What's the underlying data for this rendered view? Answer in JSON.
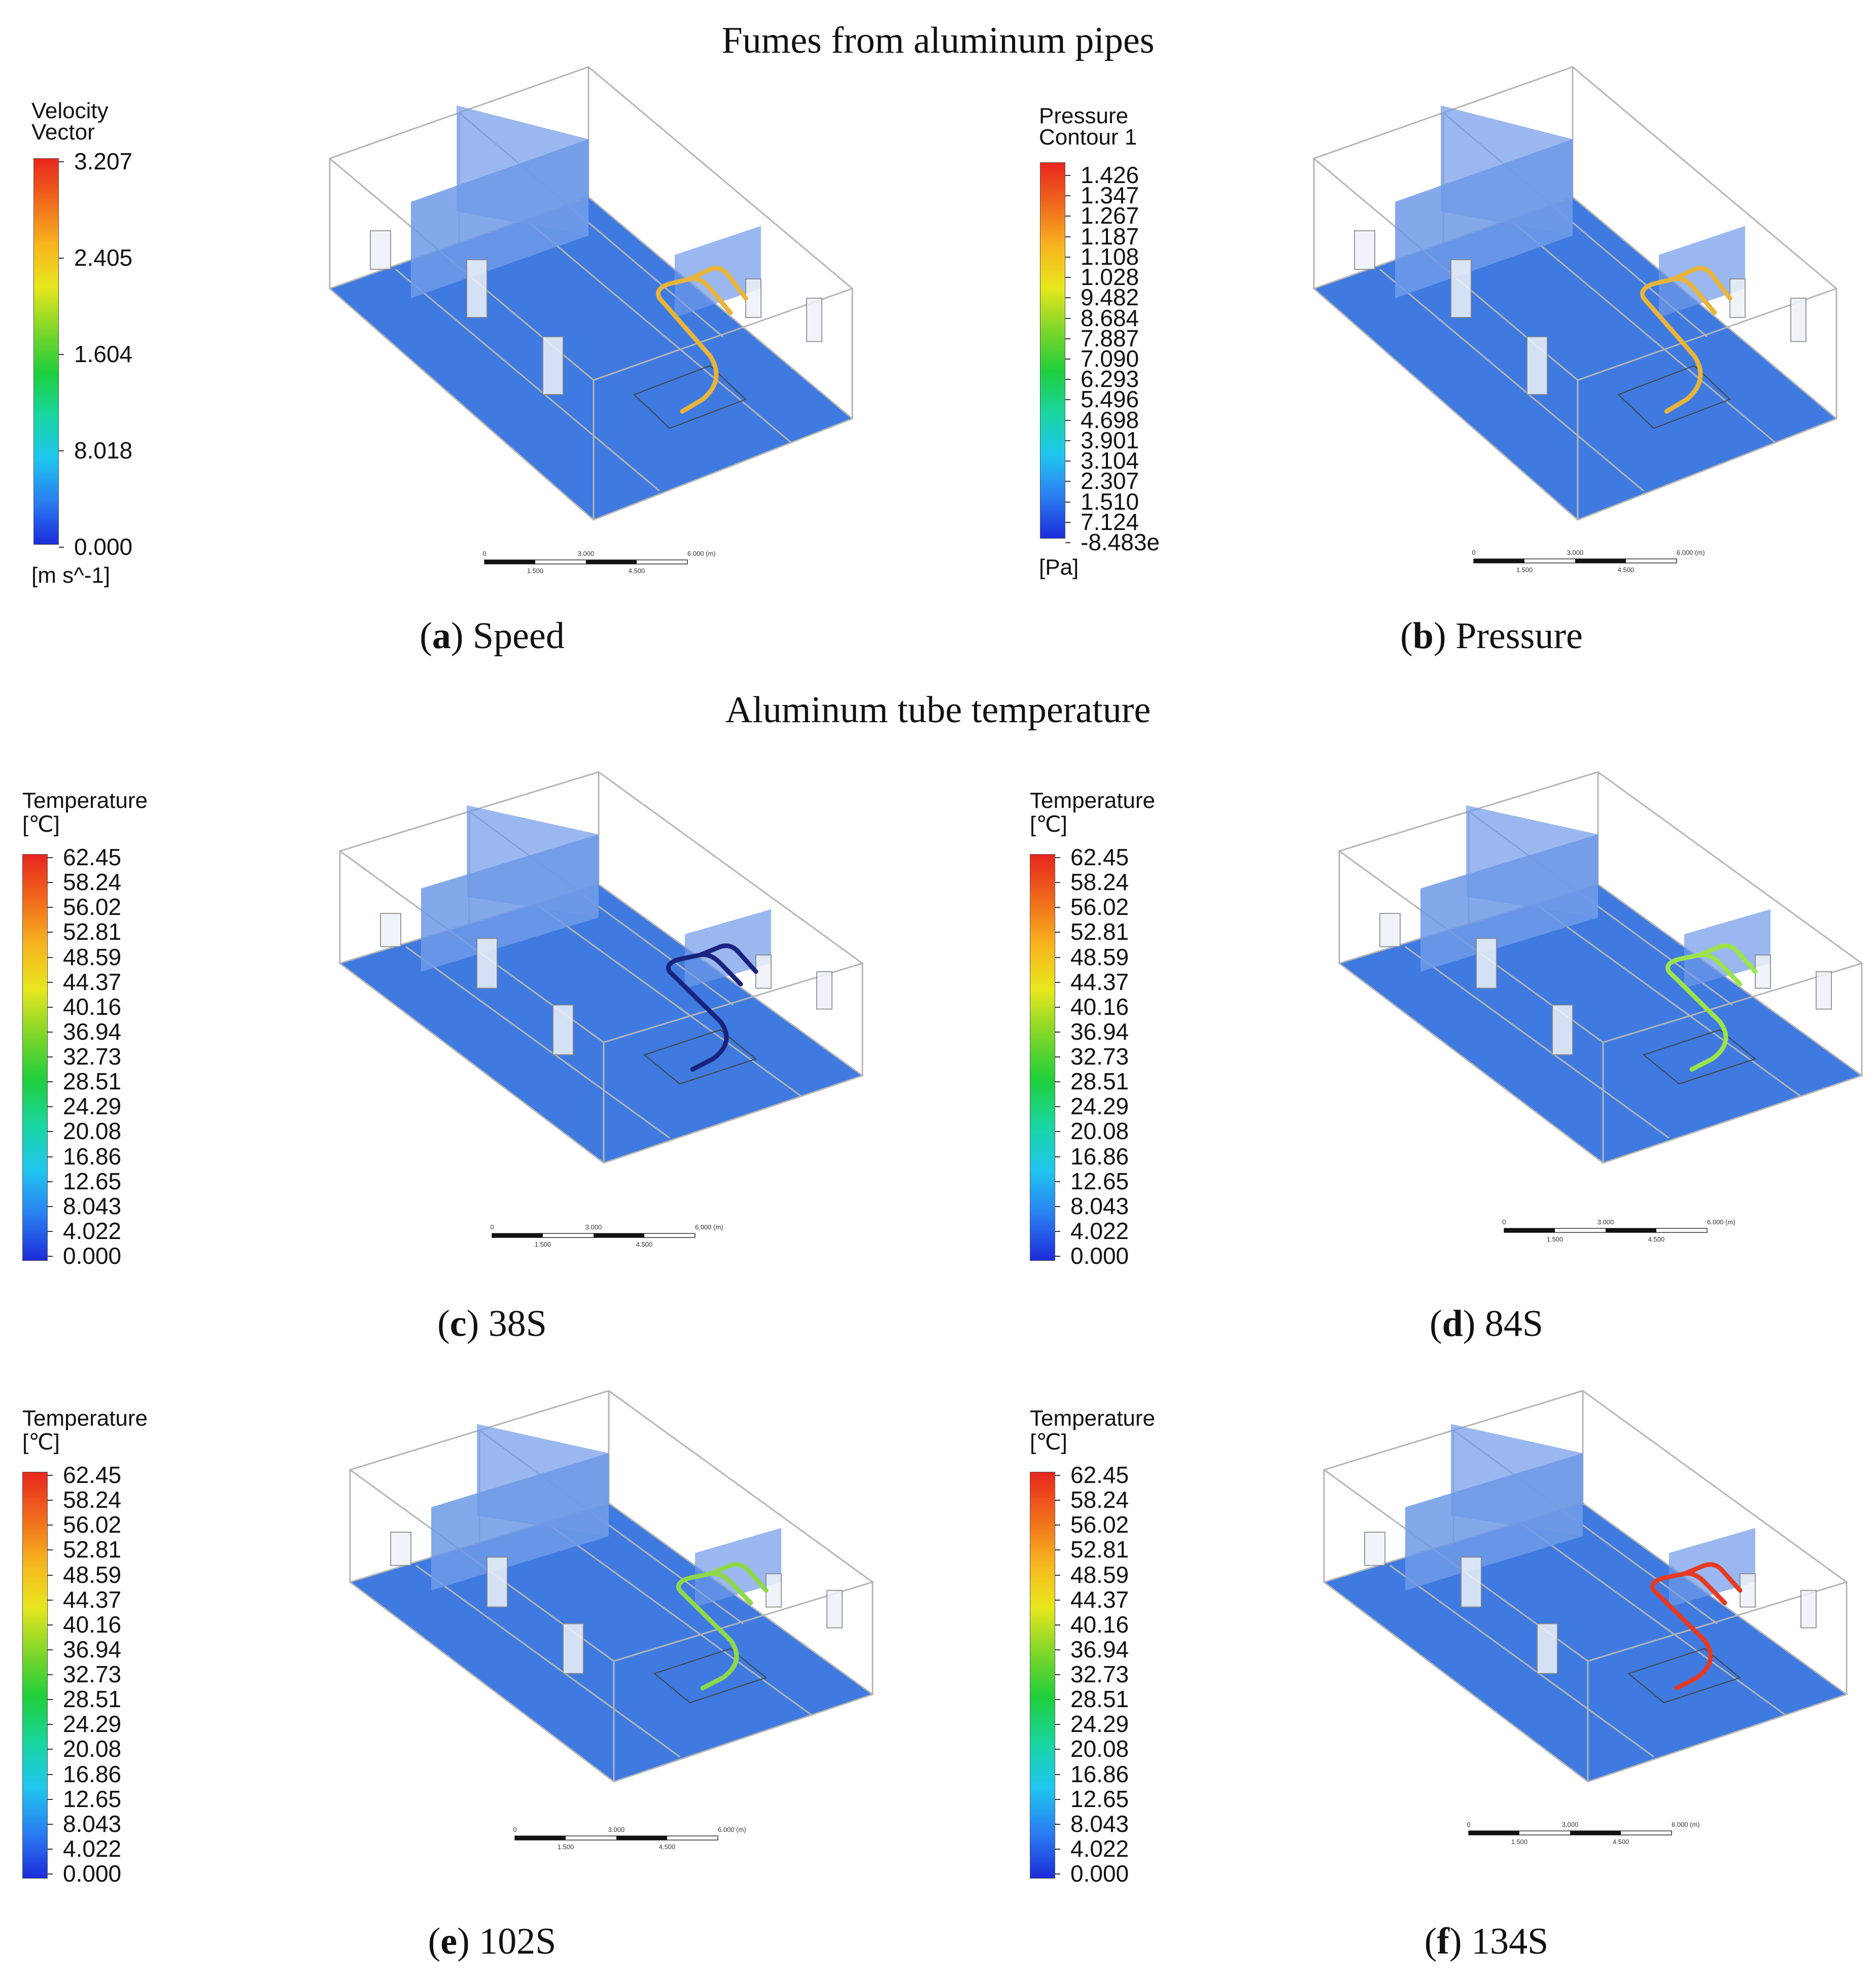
{
  "sections": {
    "fumes_title": "Fumes from aluminum pipes",
    "temperature_title": "Aluminum tube temperature"
  },
  "scale_bar": {
    "labels_top": [
      "0",
      "3.000",
      "6.000 (m)"
    ],
    "labels_bottom": [
      "1.500",
      "4.500"
    ]
  },
  "panels": {
    "a": {
      "letter": "a",
      "caption": "Speed",
      "legend": {
        "title": [
          "Velocity",
          "Vector"
        ],
        "ticks": [
          "3.207",
          "2.405",
          "1.604",
          "8.018",
          "0.000"
        ],
        "unit": "[m s^-1]"
      },
      "pipe_color": "#e9b43a"
    },
    "b": {
      "letter": "b",
      "caption": "Pressure",
      "legend": {
        "title": [
          "Pressure",
          "Contour 1"
        ],
        "ticks": [
          "1.426",
          "1.347",
          "1.267",
          "1.187",
          "1.108",
          "1.028",
          "9.482",
          "8.684",
          "7.887",
          "7.090",
          "6.293",
          "5.496",
          "4.698",
          "3.901",
          "3.104",
          "2.307",
          "1.510",
          "7.124",
          "-8.483e"
        ],
        "unit": "[Pa]"
      },
      "pipe_color": "#e9b43a"
    },
    "c": {
      "letter": "c",
      "caption": "38S",
      "legend": {
        "title": [
          "Temperature"
        ],
        "unit": "[℃]"
      },
      "pipe_color": "#1a237e"
    },
    "d": {
      "letter": "d",
      "caption": "84S",
      "legend": {
        "title": [
          "Temperature"
        ],
        "unit": "[℃]"
      },
      "pipe_color": "#9be34b"
    },
    "e": {
      "letter": "e",
      "caption": "102S",
      "legend": {
        "title": [
          "Temperature"
        ],
        "unit": "[℃]"
      },
      "pipe_color": "#8fd84a"
    },
    "f": {
      "letter": "f",
      "caption": "134S",
      "legend": {
        "title": [
          "Temperature"
        ],
        "unit": "[℃]"
      },
      "pipe_color": "#e53a24"
    }
  },
  "temperature_ticks": [
    "62.45",
    "58.24",
    "56.02",
    "52.81",
    "48.59",
    "44.37",
    "40.16",
    "36.94",
    "32.73",
    "28.51",
    "24.29",
    "20.08",
    "16.86",
    "12.65",
    "8.043",
    "4.022",
    "0.000"
  ],
  "colors": {
    "floor": "#3f7ae0",
    "wall_panel": "#6f9ae8",
    "frame": "#b5b5b5",
    "cbar_gradient": [
      "#e8261e",
      "#f06a1c",
      "#f7b51e",
      "#e8e71e",
      "#7fd629",
      "#1fcf3c",
      "#19d6a0",
      "#1fc6ef",
      "#2a7ef0",
      "#1c2cd9"
    ]
  }
}
